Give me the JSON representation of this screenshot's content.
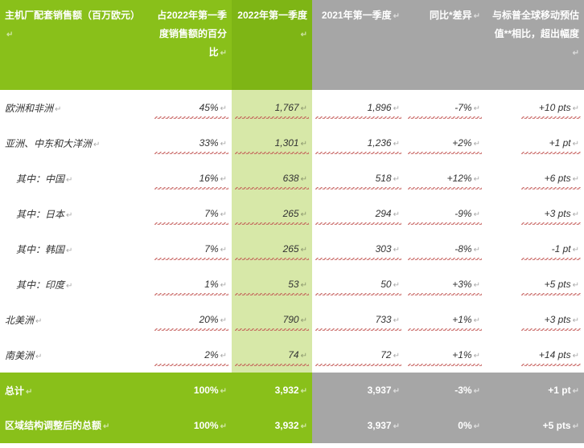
{
  "columns": {
    "c0": "主机厂配套销售额（百万欧元）",
    "c1": "占2022年第一季度销售额的百分比",
    "c2": "2022年第一季度",
    "c3": "2021年第一季度",
    "c4": "同比*差异",
    "c5": "与标普全球移动预估值**相比，超出幅度"
  },
  "rows": [
    {
      "label": "欧洲和非洲",
      "pct": "45%",
      "v2022": "1,767",
      "v2021": "1,896",
      "diff": "-7%",
      "pts": "+10 pts",
      "sub": false
    },
    {
      "label": "亚洲、中东和大洋洲",
      "pct": "33%",
      "v2022": "1,301",
      "v2021": "1,236",
      "diff": "+2%",
      "pts": "+1 pt",
      "sub": false
    },
    {
      "label": "其中：中国",
      "pct": "16%",
      "v2022": "638",
      "v2021": "518",
      "diff": "+12%",
      "pts": "+6 pts",
      "sub": true
    },
    {
      "label": "其中：日本",
      "pct": "7%",
      "v2022": "265",
      "v2021": "294",
      "diff": "-9%",
      "pts": "+3 pts",
      "sub": true
    },
    {
      "label": "其中：韩国",
      "pct": "7%",
      "v2022": "265",
      "v2021": "303",
      "diff": "-8%",
      "pts": "-1 pt",
      "sub": true
    },
    {
      "label": "其中：印度",
      "pct": "1%",
      "v2022": "53",
      "v2021": "50",
      "diff": "+3%",
      "pts": "+5 pts",
      "sub": true
    },
    {
      "label": "北美洲",
      "pct": "20%",
      "v2022": "790",
      "v2021": "733",
      "diff": "+1%",
      "pts": "+3 pts",
      "sub": false
    },
    {
      "label": "南美洲",
      "pct": "2%",
      "v2022": "74",
      "v2021": "72",
      "diff": "+1%",
      "pts": "+14 pts",
      "sub": false
    }
  ],
  "totals": [
    {
      "label": "总计",
      "pct": "100%",
      "v2022": "3,932",
      "v2021": "3,937",
      "diff": "-3%",
      "pts": "+1 pt"
    },
    {
      "label": "区域结构调整后的总额",
      "pct": "100%",
      "v2022": "3,932",
      "v2021": "3,937",
      "diff": "0%",
      "pts": "+5 pts"
    }
  ],
  "style": {
    "green": "#89c01a",
    "greenDark": "#7eb515",
    "greenLight": "#d7e8a8",
    "gray": "#a6a6a6",
    "squiggle": "#c0504d",
    "header_fontsize": 12,
    "cell_fontsize": 12
  }
}
